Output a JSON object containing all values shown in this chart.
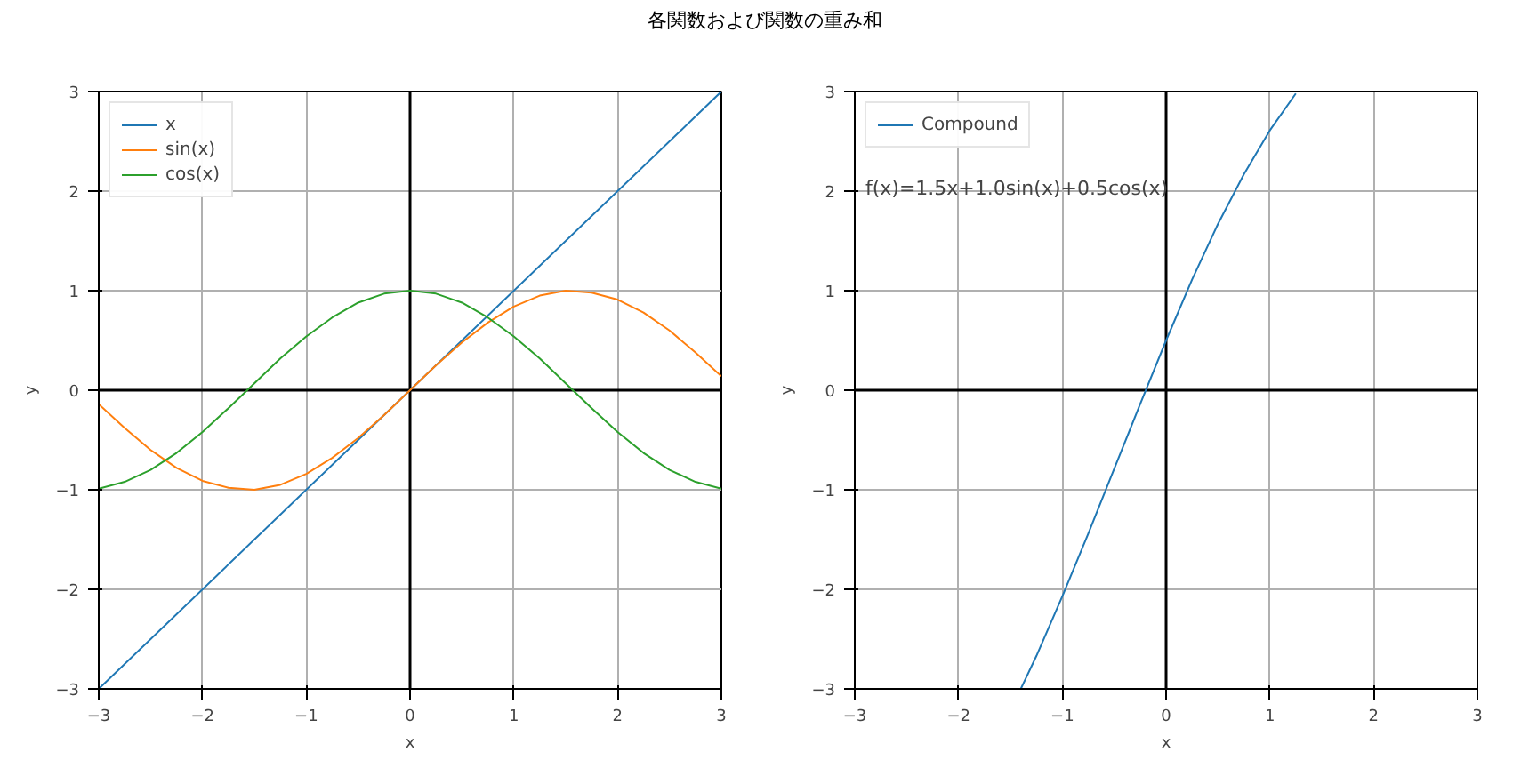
{
  "chart_data": [
    {
      "type": "line",
      "title": "各関数および関数の重み和",
      "xlabel": "x",
      "ylabel": "y",
      "xlim": [
        -3,
        3
      ],
      "ylim": [
        -3,
        3
      ],
      "xticks": [
        {
          "value": -3,
          "label": "−3"
        },
        {
          "value": -2,
          "label": "−2"
        },
        {
          "value": -1,
          "label": "−1"
        },
        0,
        1,
        2,
        3
      ],
      "yticks": [
        {
          "value": -3,
          "label": "−3"
        },
        {
          "value": -2,
          "label": "−2"
        },
        {
          "value": -1,
          "label": "−1"
        },
        0,
        1,
        2,
        3
      ],
      "grid": true,
      "legend": "top left",
      "line_style": "solid",
      "series": [
        {
          "color": "#000000",
          "x": [
            0,
            0
          ],
          "values": [
            -3,
            3
          ]
        },
        {
          "color": "#000000",
          "x": [
            -3,
            3
          ],
          "values": [
            0,
            0
          ]
        },
        {
          "name": "x",
          "color": "#1f77b4",
          "x": [
            -3,
            3
          ],
          "values": [
            -3,
            3
          ]
        },
        {
          "name": "sin(x)",
          "color": "#ff7f0e",
          "x": [
            -3,
            -2.75,
            -2.5,
            -2.25,
            -2,
            -1.75,
            -1.5,
            -1.25,
            -1,
            -0.75,
            -0.5,
            -0.25,
            0,
            0.25,
            0.5,
            0.75,
            1,
            1.25,
            1.5,
            1.75,
            2,
            2.25,
            2.5,
            2.75,
            3
          ],
          "values": [
            -0.14,
            -0.38,
            -0.6,
            -0.78,
            -0.91,
            -0.98,
            -1.0,
            -0.95,
            -0.84,
            -0.68,
            -0.48,
            -0.25,
            0,
            0.25,
            0.48,
            0.68,
            0.84,
            0.95,
            1.0,
            0.98,
            0.91,
            0.78,
            0.6,
            0.38,
            0.14
          ]
        },
        {
          "name": "cos(x)",
          "color": "#2ca02c",
          "x": [
            -3,
            -2.75,
            -2.5,
            -2.25,
            -2,
            -1.75,
            -1.5,
            -1.25,
            -1,
            -0.75,
            -0.5,
            -0.25,
            0,
            0.25,
            0.5,
            0.75,
            1,
            1.25,
            1.5,
            1.75,
            2,
            2.25,
            2.5,
            2.75,
            3
          ],
          "values": [
            -0.99,
            -0.92,
            -0.8,
            -0.63,
            -0.42,
            -0.18,
            0.07,
            0.32,
            0.54,
            0.73,
            0.88,
            0.97,
            1,
            0.97,
            0.88,
            0.73,
            0.54,
            0.32,
            0.07,
            -0.18,
            -0.42,
            -0.63,
            -0.8,
            -0.92,
            -0.99
          ]
        }
      ]
    },
    {
      "type": "line",
      "xlabel": "x",
      "ylabel": "y",
      "xlim": [
        -3,
        3
      ],
      "ylim": [
        -3,
        3
      ],
      "xticks": [
        {
          "value": -3,
          "label": "−3"
        },
        {
          "value": -2,
          "label": "−2"
        },
        {
          "value": -1,
          "label": "−1"
        },
        0,
        1,
        2,
        3
      ],
      "yticks": [
        {
          "value": -3,
          "label": "−3"
        },
        {
          "value": -2,
          "label": "−2"
        },
        {
          "value": -1,
          "label": "−1"
        },
        0,
        1,
        2,
        3
      ],
      "grid": true,
      "legend": "top left",
      "line_style": "solid",
      "annotations": [
        "f(x)=1.5x+1.0sin(x)+0.5cos(x)"
      ],
      "series": [
        {
          "color": "#000000",
          "x": [
            0,
            0
          ],
          "values": [
            -3,
            3
          ]
        },
        {
          "color": "#000000",
          "x": [
            -3,
            3
          ],
          "values": [
            0,
            0
          ]
        },
        {
          "name": "Compound",
          "color": "#1f77b4",
          "x": [
            -1.4,
            -1.25,
            -1,
            -0.75,
            -0.5,
            -0.25,
            0,
            0.25,
            0.5,
            0.75,
            1,
            1.25
          ],
          "values": [
            -3.0,
            -2.67,
            -2.07,
            -1.44,
            -0.79,
            -0.14,
            0.5,
            1.11,
            1.67,
            2.17,
            2.61,
            2.98
          ]
        }
      ]
    }
  ]
}
